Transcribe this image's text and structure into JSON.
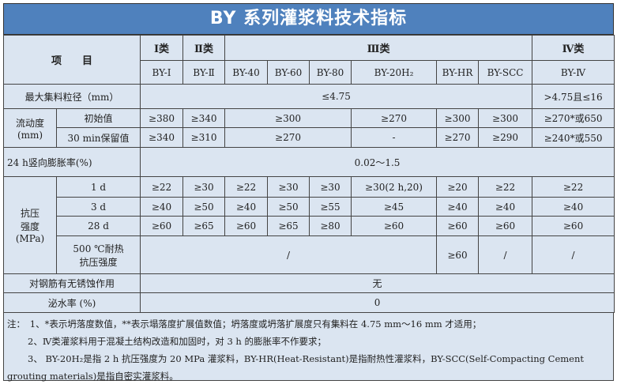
{
  "title": "BY 系列灌浆料技术指标",
  "header": {
    "item": "项　　目",
    "classes": [
      "Ⅰ类",
      "Ⅱ类",
      "Ⅲ类",
      "Ⅳ类"
    ],
    "products": [
      "BY-Ⅰ",
      "BY-Ⅱ",
      "BY-40",
      "BY-60",
      "BY-80",
      "BY-20H₂",
      "BY-HR",
      "BY-SCC",
      "BY-Ⅳ"
    ]
  },
  "rows": {
    "max_aggregate": {
      "label": "最大集料粒径（mm）",
      "v1": "≤4.75",
      "v2": ">4.75且≤16"
    },
    "fluidity": {
      "label": "流动度",
      "unit": "(mm)",
      "initial": {
        "label": "初始值",
        "values": [
          "≥380",
          "≥340",
          "≥300",
          "≥270",
          "≥300",
          "≥300",
          "≥270*或650"
        ]
      },
      "retained": {
        "label": "30 min保留值",
        "values": [
          "≥340",
          "≥310",
          "≥270",
          "-",
          "≥270",
          "≥290",
          "≥240*或550"
        ]
      }
    },
    "expansion": {
      "label": "24 h竖向膨胀率(%)",
      "value": "0.02～1.5"
    },
    "strength": {
      "label1": "抗压",
      "label2": "强度",
      "unit": "(MPa)",
      "d1": {
        "label": "1 d",
        "values": [
          "≥22",
          "≥30",
          "≥22",
          "≥30",
          "≥30",
          "≥30(2 h,20)",
          "≥20",
          "≥22",
          "≥22"
        ]
      },
      "d3": {
        "label": "3 d",
        "values": [
          "≥40",
          "≥50",
          "≥40",
          "≥50",
          "≥55",
          "≥45",
          "≥40",
          "≥40",
          "≥40"
        ]
      },
      "d28": {
        "label": "28 d",
        "values": [
          "≥60",
          "≥65",
          "≥60",
          "≥65",
          "≥80",
          "≥60",
          "≥60",
          "≥60",
          "≥60"
        ]
      },
      "heat": {
        "label1": "500 ℃耐热",
        "label2": "抗压强度",
        "values": [
          "/",
          "≥60",
          "/",
          "/"
        ]
      }
    },
    "corrosion": {
      "label": "对钢筋有无锈蚀作用",
      "value": "无"
    },
    "bleeding": {
      "label": "泌水率 (%)",
      "value": "0"
    }
  },
  "notes": [
    "注：　1、*表示坍落度数值，**表示塌落度扩展值数值；坍落度或坍落扩展度只有集料在 4.75 mm～16 mm 才适用；",
    "2、Ⅳ类灌浆料用于混凝土结构改造和加固时，对 3 h 的膨胀率不作要求；",
    "3、 BY-20H₂是指 2 h 抗压强度为 20 MPa 灌浆料，BY-HR(Heat-Resistant)是指耐热性灌浆料，BY-SCC(Self-Compacting Cement",
    "grouting materials)是指自密实灌浆料。"
  ]
}
